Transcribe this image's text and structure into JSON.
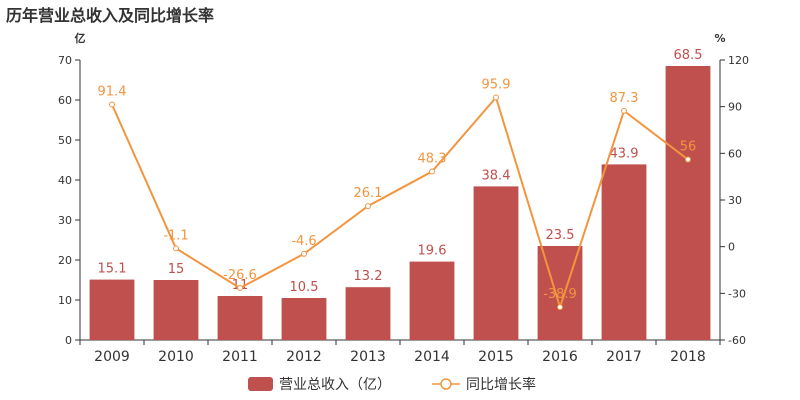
{
  "colors": {
    "bar": "#c0504d",
    "line": "#f2953f",
    "axis": "#333333",
    "text": "#333333"
  },
  "chart_data": {
    "type": "bar",
    "title": "历年营业总收入及同比增长率",
    "categories": [
      "2009",
      "2010",
      "2011",
      "2012",
      "2013",
      "2014",
      "2015",
      "2016",
      "2017",
      "2018"
    ],
    "y_left_unit": "亿",
    "y_right_unit": "%",
    "ylim_left": [
      0,
      70
    ],
    "yticks_left": [
      0,
      10,
      20,
      30,
      40,
      50,
      60,
      70
    ],
    "ylim_right": [
      -60,
      120
    ],
    "yticks_right": [
      -60,
      -30,
      0,
      30,
      60,
      90,
      120
    ],
    "grid": false,
    "legend_position": "bottom-center",
    "series": [
      {
        "name": "营业总收入（亿）",
        "type": "bar",
        "axis": "left",
        "values": [
          15.1,
          15,
          11,
          10.5,
          13.2,
          19.6,
          38.4,
          23.5,
          43.9,
          68.5
        ],
        "labels": [
          "15.1",
          "15",
          "11",
          "10.5",
          "13.2",
          "19.6",
          "38.4",
          "23.5",
          "43.9",
          "68.5"
        ]
      },
      {
        "name": "同比增长率",
        "type": "line",
        "axis": "right",
        "values": [
          91.4,
          -1.1,
          -26.6,
          -4.6,
          26.1,
          48.3,
          95.9,
          -38.9,
          87.3,
          56
        ],
        "labels": [
          "91.4",
          "-1.1",
          "-26.6",
          "-4.6",
          "26.1",
          "48.3",
          "95.9",
          "-38.9",
          "87.3",
          "56"
        ]
      }
    ]
  }
}
